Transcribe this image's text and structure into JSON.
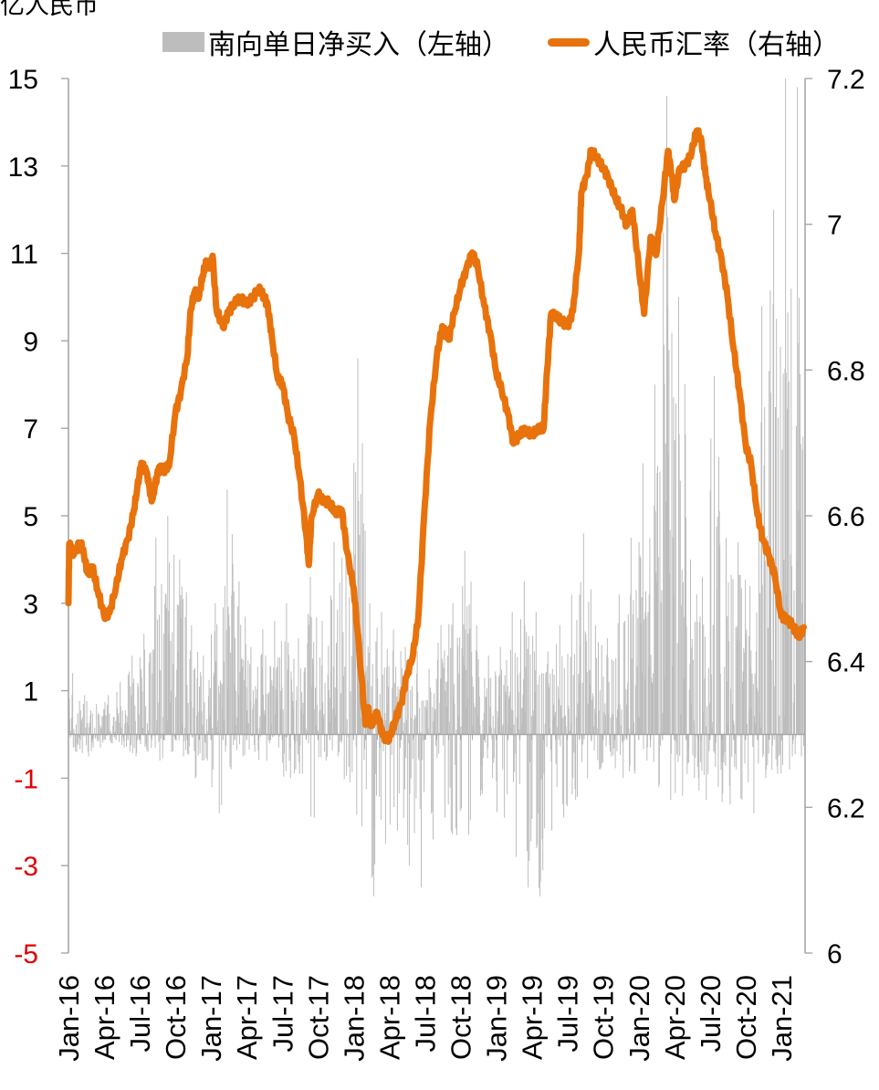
{
  "chart_data": {
    "type": "bar+line",
    "y_left_unit": "亿人民币",
    "y_left_ticks": [
      "15",
      "13",
      "11",
      "9",
      "7",
      "5",
      "3",
      "1",
      "-1",
      "-3",
      "-5"
    ],
    "y_left_ticks_values": [
      15,
      13,
      11,
      9,
      7,
      5,
      3,
      1,
      -1,
      -3,
      -5
    ],
    "y_left_negative_color": "#e00000",
    "y_left_range": [
      -5,
      15
    ],
    "y_right_ticks": [
      "7.2",
      "7",
      "6.8",
      "6.6",
      "6.4",
      "6.2",
      "6"
    ],
    "y_right_ticks_values": [
      7.2,
      7.0,
      6.8,
      6.6,
      6.4,
      6.2,
      6.0
    ],
    "y_right_range": [
      6.0,
      7.2
    ],
    "x_ticks": [
      "Jan-16",
      "Apr-16",
      "Jul-16",
      "Oct-16",
      "Jan-17",
      "Apr-17",
      "Jul-17",
      "Oct-17",
      "Jan-18",
      "Apr-18",
      "Jul-18",
      "Oct-18",
      "Jan-19",
      "Apr-19",
      "Jul-19",
      "Oct-19",
      "Jan-20",
      "Apr-20",
      "Jul-20",
      "Oct-20",
      "Jan-21"
    ],
    "x_range": [
      "2016-01",
      "2021-03"
    ],
    "series": [
      {
        "name": "南向单日净买入（左轴）",
        "type": "bar",
        "axis": "left",
        "color": "#bdbdbd",
        "monthly_x": [
          "2016-01",
          "2016-02",
          "2016-03",
          "2016-04",
          "2016-05",
          "2016-06",
          "2016-07",
          "2016-08",
          "2016-09",
          "2016-10",
          "2016-11",
          "2016-12",
          "2017-01",
          "2017-02",
          "2017-03",
          "2017-04",
          "2017-05",
          "2017-06",
          "2017-07",
          "2017-08",
          "2017-09",
          "2017-10",
          "2017-11",
          "2017-12",
          "2018-01",
          "2018-02",
          "2018-03",
          "2018-04",
          "2018-05",
          "2018-06",
          "2018-07",
          "2018-08",
          "2018-09",
          "2018-10",
          "2018-11",
          "2018-12",
          "2019-01",
          "2019-02",
          "2019-03",
          "2019-04",
          "2019-05",
          "2019-06",
          "2019-07",
          "2019-08",
          "2019-09",
          "2019-10",
          "2019-11",
          "2019-12",
          "2020-01",
          "2020-02",
          "2020-03",
          "2020-04",
          "2020-05",
          "2020-06",
          "2020-07",
          "2020-08",
          "2020-09",
          "2020-10",
          "2020-11",
          "2020-12",
          "2021-01",
          "2021-02"
        ],
        "monthly_max": [
          1.4,
          0.9,
          0.7,
          0.9,
          1.2,
          1.8,
          2.3,
          4.5,
          5.0,
          4.0,
          2.5,
          1.8,
          3.0,
          5.6,
          3.5,
          2.0,
          2.4,
          2.6,
          3.0,
          2.2,
          3.6,
          2.6,
          4.4,
          5.0,
          8.6,
          3.0,
          2.8,
          2.4,
          2.0,
          1.9,
          1.5,
          2.5,
          3.0,
          4.2,
          2.5,
          1.8,
          2.0,
          2.8,
          3.5,
          2.8,
          1.9,
          2.5,
          3.2,
          4.6,
          2.5,
          2.2,
          3.2,
          4.5,
          6.2,
          8.0,
          14.6,
          10.0,
          4.0,
          3.6,
          8.2,
          4.5,
          4.4,
          3.4,
          9.8,
          12.0,
          15.0,
          14.8
        ],
        "monthly_min": [
          -0.4,
          -0.5,
          -0.3,
          -0.2,
          -0.3,
          -0.5,
          -0.4,
          -0.6,
          -0.4,
          -0.5,
          -1.0,
          -0.6,
          -1.8,
          -0.8,
          -0.5,
          -0.4,
          -0.6,
          -0.3,
          -1.0,
          -0.9,
          -1.9,
          -0.6,
          -0.5,
          -1.1,
          -2.1,
          -3.7,
          -2.5,
          -2.2,
          -3.0,
          -3.5,
          -2.4,
          -1.9,
          -2.3,
          -2.3,
          -1.4,
          -1.0,
          -1.9,
          -2.8,
          -3.5,
          -3.7,
          -2.2,
          -1.9,
          -1.5,
          -1.0,
          -0.8,
          -0.5,
          -1.0,
          -0.9,
          -0.6,
          -1.2,
          -1.5,
          -1.4,
          -1.0,
          -1.5,
          -1.2,
          -1.6,
          -1.5,
          -1.8,
          -1.0,
          -0.9,
          -0.8,
          -0.5
        ]
      },
      {
        "name": "人民币汇率（右轴）",
        "type": "line",
        "axis": "right",
        "color": "#e8720c",
        "x": [
          "2016-01-01",
          "2016-01-03",
          "2016-01-15",
          "2016-02-01",
          "2016-02-10",
          "2016-02-20",
          "2016-03-01",
          "2016-03-15",
          "2016-04-01",
          "2016-04-15",
          "2016-05-01",
          "2016-05-15",
          "2016-06-01",
          "2016-06-15",
          "2016-06-25",
          "2016-07-05",
          "2016-07-20",
          "2016-08-01",
          "2016-08-10",
          "2016-08-20",
          "2016-09-01",
          "2016-09-15",
          "2016-10-01",
          "2016-10-15",
          "2016-11-01",
          "2016-11-10",
          "2016-11-20",
          "2016-12-01",
          "2016-12-10",
          "2016-12-20",
          "2017-01-01",
          "2017-01-05",
          "2017-01-15",
          "2017-02-01",
          "2017-02-15",
          "2017-03-01",
          "2017-03-15",
          "2017-04-01",
          "2017-04-15",
          "2017-05-01",
          "2017-05-15",
          "2017-05-25",
          "2017-06-05",
          "2017-06-20",
          "2017-07-01",
          "2017-07-15",
          "2017-08-01",
          "2017-08-15",
          "2017-09-01",
          "2017-09-08",
          "2017-09-15",
          "2017-10-01",
          "2017-10-15",
          "2017-11-01",
          "2017-11-15",
          "2017-12-01",
          "2017-12-15",
          "2018-01-01",
          "2018-01-15",
          "2018-02-01",
          "2018-02-07",
          "2018-02-15",
          "2018-03-01",
          "2018-03-15",
          "2018-04-01",
          "2018-04-15",
          "2018-05-01",
          "2018-05-15",
          "2018-06-01",
          "2018-06-15",
          "2018-07-01",
          "2018-07-15",
          "2018-08-01",
          "2018-08-15",
          "2018-09-01",
          "2018-09-15",
          "2018-10-01",
          "2018-10-15",
          "2018-10-31",
          "2018-11-15",
          "2018-12-01",
          "2018-12-15",
          "2019-01-01",
          "2019-01-15",
          "2019-02-01",
          "2019-02-15",
          "2019-03-01",
          "2019-03-15",
          "2019-04-01",
          "2019-04-15",
          "2019-05-01",
          "2019-05-10",
          "2019-05-20",
          "2019-06-01",
          "2019-06-15",
          "2019-07-01",
          "2019-07-15",
          "2019-08-01",
          "2019-08-06",
          "2019-08-20",
          "2019-09-01",
          "2019-09-15",
          "2019-10-01",
          "2019-10-15",
          "2019-11-01",
          "2019-11-15",
          "2019-12-01",
          "2019-12-15",
          "2020-01-01",
          "2020-01-15",
          "2020-02-01",
          "2020-02-15",
          "2020-03-01",
          "2020-03-15",
          "2020-03-25",
          "2020-04-01",
          "2020-04-15",
          "2020-05-01",
          "2020-05-15",
          "2020-05-28",
          "2020-06-10",
          "2020-06-20",
          "2020-07-01",
          "2020-07-15",
          "2020-08-01",
          "2020-08-15",
          "2020-09-01",
          "2020-09-15",
          "2020-10-01",
          "2020-10-15",
          "2020-11-01",
          "2020-11-15",
          "2020-12-01",
          "2020-12-15",
          "2021-01-01",
          "2021-01-15",
          "2021-02-01",
          "2021-02-15",
          "2021-02-28"
        ],
        "y": [
          6.48,
          6.56,
          6.55,
          6.56,
          6.55,
          6.52,
          6.53,
          6.5,
          6.46,
          6.47,
          6.5,
          6.54,
          6.57,
          6.6,
          6.64,
          6.67,
          6.66,
          6.62,
          6.64,
          6.67,
          6.66,
          6.67,
          6.74,
          6.77,
          6.82,
          6.88,
          6.91,
          6.9,
          6.93,
          6.95,
          6.94,
          6.96,
          6.88,
          6.86,
          6.88,
          6.89,
          6.9,
          6.89,
          6.9,
          6.91,
          6.9,
          6.89,
          6.84,
          6.79,
          6.78,
          6.74,
          6.71,
          6.65,
          6.58,
          6.53,
          6.6,
          6.63,
          6.62,
          6.62,
          6.6,
          6.61,
          6.55,
          6.5,
          6.42,
          6.31,
          6.34,
          6.31,
          6.33,
          6.3,
          6.29,
          6.32,
          6.34,
          6.38,
          6.41,
          6.46,
          6.62,
          6.73,
          6.82,
          6.86,
          6.84,
          6.88,
          6.91,
          6.94,
          6.96,
          6.94,
          6.89,
          6.85,
          6.8,
          6.77,
          6.74,
          6.7,
          6.71,
          6.72,
          6.71,
          6.72,
          6.72,
          6.8,
          6.88,
          6.87,
          6.87,
          6.86,
          6.88,
          6.97,
          7.04,
          7.07,
          7.1,
          7.09,
          7.08,
          7.06,
          7.04,
          7.02,
          7.0,
          7.02,
          6.94,
          6.88,
          6.98,
          6.96,
          7.03,
          7.1,
          7.07,
          7.03,
          7.08,
          7.08,
          7.1,
          7.13,
          7.11,
          7.07,
          7.03,
          6.99,
          6.95,
          6.9,
          6.83,
          6.77,
          6.7,
          6.67,
          6.6,
          6.57,
          6.54,
          6.52,
          6.46,
          6.46,
          6.45,
          6.43,
          6.45
        ]
      }
    ]
  }
}
